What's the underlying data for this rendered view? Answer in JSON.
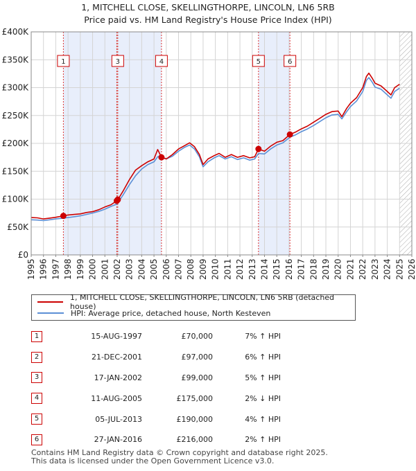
{
  "chart_data": {
    "type": "line",
    "title": "1, MITCHELL CLOSE, SKELLINGTHORPE, LINCOLN, LN6 5RB",
    "subtitle": "Price paid vs. HM Land Registry's House Price Index (HPI)",
    "xlim": [
      1995,
      2026
    ],
    "ylim": [
      0,
      400000
    ],
    "x_ticks": [
      "1995",
      "1996",
      "1997",
      "1998",
      "1999",
      "2000",
      "2001",
      "2002",
      "2003",
      "2004",
      "2005",
      "2006",
      "2007",
      "2008",
      "2009",
      "2010",
      "2011",
      "2012",
      "2013",
      "2014",
      "2015",
      "2016",
      "2017",
      "2018",
      "2019",
      "2020",
      "2021",
      "2022",
      "2023",
      "2024",
      "2025",
      "2026"
    ],
    "y_ticks": [
      {
        "value": 0,
        "label": "£0"
      },
      {
        "value": 50000,
        "label": "£50K"
      },
      {
        "value": 100000,
        "label": "£100K"
      },
      {
        "value": 150000,
        "label": "£150K"
      },
      {
        "value": 200000,
        "label": "£200K"
      },
      {
        "value": 250000,
        "label": "£250K"
      },
      {
        "value": 300000,
        "label": "£300K"
      },
      {
        "value": 350000,
        "label": "£350K"
      },
      {
        "value": 400000,
        "label": "£400K"
      }
    ],
    "grid": true,
    "shaded_spans": [
      [
        1997.62,
        2001.97
      ],
      [
        2002.05,
        2005.61
      ],
      [
        2013.51,
        2016.07
      ]
    ],
    "future_hatch_from": 2025.0,
    "series": [
      {
        "name": "1, MITCHELL CLOSE, SKELLINGTHORPE, LINCOLN, LN6 5RB (detached house)",
        "color": "#cc0000",
        "points": [
          [
            1995.0,
            67000
          ],
          [
            1995.5,
            66500
          ],
          [
            1996.0,
            64500
          ],
          [
            1996.5,
            66000
          ],
          [
            1997.0,
            67500
          ],
          [
            1997.62,
            70000
          ],
          [
            1998.0,
            71500
          ],
          [
            1998.5,
            72500
          ],
          [
            1999.0,
            73500
          ],
          [
            1999.5,
            76000
          ],
          [
            2000.0,
            77500
          ],
          [
            2000.5,
            81000
          ],
          [
            2001.0,
            86000
          ],
          [
            2001.5,
            90000
          ],
          [
            2001.97,
            97000
          ],
          [
            2002.05,
            99000
          ],
          [
            2002.5,
            115000
          ],
          [
            2003.0,
            135000
          ],
          [
            2003.5,
            152000
          ],
          [
            2004.0,
            160000
          ],
          [
            2004.5,
            167000
          ],
          [
            2005.0,
            172000
          ],
          [
            2005.3,
            189000
          ],
          [
            2005.61,
            175000
          ],
          [
            2006.0,
            172000
          ],
          [
            2006.5,
            180000
          ],
          [
            2007.0,
            190000
          ],
          [
            2007.5,
            196000
          ],
          [
            2007.9,
            201000
          ],
          [
            2008.3,
            194000
          ],
          [
            2008.7,
            180000
          ],
          [
            2009.0,
            162000
          ],
          [
            2009.4,
            172000
          ],
          [
            2009.9,
            178000
          ],
          [
            2010.3,
            182000
          ],
          [
            2010.8,
            175000
          ],
          [
            2011.3,
            180000
          ],
          [
            2011.8,
            175000
          ],
          [
            2012.3,
            178000
          ],
          [
            2012.8,
            174000
          ],
          [
            2013.2,
            176000
          ],
          [
            2013.51,
            190000
          ],
          [
            2014.0,
            186000
          ],
          [
            2014.5,
            195000
          ],
          [
            2015.0,
            202000
          ],
          [
            2015.5,
            205000
          ],
          [
            2016.07,
            216000
          ],
          [
            2016.5,
            220000
          ],
          [
            2017.0,
            226000
          ],
          [
            2017.5,
            231000
          ],
          [
            2018.0,
            238000
          ],
          [
            2018.5,
            245000
          ],
          [
            2019.0,
            252000
          ],
          [
            2019.5,
            257000
          ],
          [
            2020.0,
            258000
          ],
          [
            2020.3,
            248000
          ],
          [
            2020.7,
            263000
          ],
          [
            2021.0,
            272000
          ],
          [
            2021.5,
            282000
          ],
          [
            2022.0,
            300000
          ],
          [
            2022.3,
            320000
          ],
          [
            2022.5,
            326000
          ],
          [
            2022.8,
            316000
          ],
          [
            2023.0,
            308000
          ],
          [
            2023.5,
            303000
          ],
          [
            2024.0,
            293000
          ],
          [
            2024.3,
            287000
          ],
          [
            2024.6,
            300000
          ],
          [
            2025.0,
            306000
          ]
        ]
      },
      {
        "name": "HPI: Average price, detached house, North Kesteven",
        "color": "#5b8fd6",
        "points": [
          [
            1995.0,
            63000
          ],
          [
            1995.5,
            62500
          ],
          [
            1996.0,
            61500
          ],
          [
            1996.5,
            63000
          ],
          [
            1997.0,
            64500
          ],
          [
            1997.62,
            66000
          ],
          [
            1998.0,
            67000
          ],
          [
            1998.5,
            68500
          ],
          [
            1999.0,
            70000
          ],
          [
            1999.5,
            72500
          ],
          [
            2000.0,
            75000
          ],
          [
            2000.5,
            78000
          ],
          [
            2001.0,
            82000
          ],
          [
            2001.5,
            87000
          ],
          [
            2001.97,
            91000
          ],
          [
            2002.05,
            93000
          ],
          [
            2002.5,
            108000
          ],
          [
            2003.0,
            126000
          ],
          [
            2003.5,
            142000
          ],
          [
            2004.0,
            154000
          ],
          [
            2004.5,
            162000
          ],
          [
            2005.0,
            167000
          ],
          [
            2005.3,
            176000
          ],
          [
            2005.61,
            176500
          ],
          [
            2006.0,
            172000
          ],
          [
            2006.5,
            177000
          ],
          [
            2007.0,
            186000
          ],
          [
            2007.5,
            193000
          ],
          [
            2007.9,
            197000
          ],
          [
            2008.3,
            190000
          ],
          [
            2008.7,
            176000
          ],
          [
            2009.0,
            158000
          ],
          [
            2009.4,
            167000
          ],
          [
            2009.9,
            174000
          ],
          [
            2010.3,
            178000
          ],
          [
            2010.8,
            172000
          ],
          [
            2011.3,
            176000
          ],
          [
            2011.8,
            171000
          ],
          [
            2012.3,
            174000
          ],
          [
            2012.8,
            170000
          ],
          [
            2013.2,
            172000
          ],
          [
            2013.51,
            182000
          ],
          [
            2014.0,
            181000
          ],
          [
            2014.5,
            190000
          ],
          [
            2015.0,
            197000
          ],
          [
            2015.5,
            201000
          ],
          [
            2016.07,
            211000
          ],
          [
            2016.5,
            215000
          ],
          [
            2017.0,
            221000
          ],
          [
            2017.5,
            226000
          ],
          [
            2018.0,
            232000
          ],
          [
            2018.5,
            239000
          ],
          [
            2019.0,
            246000
          ],
          [
            2019.5,
            251000
          ],
          [
            2020.0,
            252000
          ],
          [
            2020.3,
            244000
          ],
          [
            2020.7,
            257000
          ],
          [
            2021.0,
            266000
          ],
          [
            2021.5,
            276000
          ],
          [
            2022.0,
            293000
          ],
          [
            2022.3,
            313000
          ],
          [
            2022.5,
            318000
          ],
          [
            2022.8,
            309000
          ],
          [
            2023.0,
            301000
          ],
          [
            2023.5,
            297000
          ],
          [
            2024.0,
            287000
          ],
          [
            2024.3,
            281000
          ],
          [
            2024.6,
            293000
          ],
          [
            2025.0,
            299000
          ]
        ]
      }
    ],
    "sales": [
      {
        "num": "1",
        "x": 1997.62,
        "value": 70000
      },
      {
        "num": "2",
        "x": 2001.97,
        "value": 97000
      },
      {
        "num": "3",
        "x": 2002.05,
        "value": 99000
      },
      {
        "num": "4",
        "x": 2005.61,
        "value": 175000
      },
      {
        "num": "5",
        "x": 2013.51,
        "value": 190000
      },
      {
        "num": "6",
        "x": 2016.07,
        "value": 216000
      }
    ],
    "marker_labels": [
      {
        "num": "1",
        "x": 1997.62
      },
      {
        "num": "3",
        "x": 2002.05
      },
      {
        "num": "4",
        "x": 2005.61
      },
      {
        "num": "5",
        "x": 2013.51
      },
      {
        "num": "6",
        "x": 2016.07
      }
    ]
  },
  "legend": {
    "property_label": "1, MITCHELL CLOSE, SKELLINGTHORPE, LINCOLN, LN6 5RB (detached house)",
    "hpi_label": "HPI: Average price, detached house, North Kesteven"
  },
  "sales_table": [
    {
      "num": "1",
      "date": "15-AUG-1997",
      "price": "£70,000",
      "hpi": "7% ↑ HPI"
    },
    {
      "num": "2",
      "date": "21-DEC-2001",
      "price": "£97,000",
      "hpi": "6% ↑ HPI"
    },
    {
      "num": "3",
      "date": "17-JAN-2002",
      "price": "£99,000",
      "hpi": "5% ↑ HPI"
    },
    {
      "num": "4",
      "date": "11-AUG-2005",
      "price": "£175,000",
      "hpi": "2% ↓ HPI"
    },
    {
      "num": "5",
      "date": "05-JUL-2013",
      "price": "£190,000",
      "hpi": "4% ↑ HPI"
    },
    {
      "num": "6",
      "date": "27-JAN-2016",
      "price": "£216,000",
      "hpi": "2% ↑ HPI"
    }
  ],
  "footer": {
    "line1": "Contains HM Land Registry data © Crown copyright and database right 2025.",
    "line2": "This data is licensed under the Open Government Licence v3.0."
  }
}
